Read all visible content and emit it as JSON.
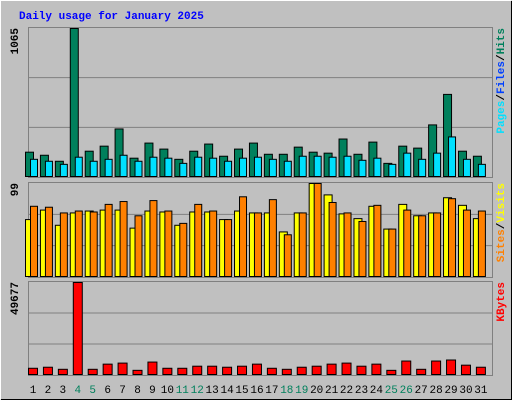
{
  "chart_data": [
    {
      "type": "bar",
      "title": "Daily usage for January 2025",
      "legend_separator": "/",
      "ylim": [
        0,
        1065
      ],
      "yticks": [
        1065
      ],
      "series": [
        {
          "name": "Hits",
          "color": "#00805c",
          "values": [
            181,
            159,
            116,
            1065,
            188,
            224,
            347,
            138,
            246,
            203,
            130,
            188,
            239,
            152,
            203,
            246,
            166,
            166,
            217,
            181,
            174,
            275,
            166,
            253,
            101,
            224,
            210,
            376,
            594,
            188,
            152
          ]
        },
        {
          "name": "Files",
          "color": "#0040ff",
          "values": [
            null,
            null,
            null,
            null,
            null,
            null,
            null,
            null,
            null,
            null,
            null,
            null,
            null,
            null,
            null,
            null,
            null,
            null,
            null,
            null,
            null,
            null,
            null,
            null,
            null,
            null,
            null,
            null,
            null,
            null,
            null
          ]
        },
        {
          "name": "Pages",
          "color": "#00e0ff",
          "values": [
            130,
            116,
            94,
            145,
            116,
            130,
            159,
            116,
            145,
            138,
            101,
            145,
            138,
            116,
            138,
            145,
            130,
            116,
            152,
            152,
            145,
            152,
            123,
            138,
            94,
            174,
            130,
            174,
            290,
            130,
            94
          ]
        }
      ]
    },
    {
      "type": "bar",
      "legend_separator": "/",
      "ylim": [
        0,
        99
      ],
      "yticks": [
        99
      ],
      "series": [
        {
          "name": "Visits",
          "color": "#ffff00",
          "values": [
            61,
            71,
            55,
            68,
            70,
            71,
            71,
            52,
            70,
            69,
            55,
            69,
            69,
            61,
            70,
            68,
            68,
            48,
            68,
            99,
            87,
            67,
            62,
            75,
            51,
            77,
            65,
            68,
            84,
            76,
            62
          ]
        },
        {
          "name": "Sites",
          "color": "#ff8000",
          "values": [
            75,
            74,
            68,
            70,
            69,
            77,
            80,
            65,
            81,
            70,
            57,
            77,
            70,
            61,
            85,
            68,
            82,
            45,
            68,
            99,
            79,
            68,
            59,
            76,
            51,
            71,
            65,
            68,
            83,
            71,
            70
          ]
        }
      ]
    },
    {
      "type": "bar",
      "ylim": [
        0,
        49677
      ],
      "yticks": [
        49677
      ],
      "categories": [
        "1",
        "2",
        "3",
        "4",
        "5",
        "6",
        "7",
        "8",
        "9",
        "10",
        "11",
        "12",
        "13",
        "14",
        "15",
        "16",
        "17",
        "18",
        "19",
        "20",
        "21",
        "22",
        "23",
        "24",
        "25",
        "26",
        "27",
        "28",
        "29",
        "30",
        "31"
      ],
      "category_colors": [
        "#000000",
        "#000000",
        "#000000",
        "#00805c",
        "#00805c",
        "#000000",
        "#000000",
        "#000000",
        "#000000",
        "#000000",
        "#00805c",
        "#00805c",
        "#000000",
        "#000000",
        "#000000",
        "#000000",
        "#000000",
        "#00805c",
        "#00805c",
        "#000000",
        "#000000",
        "#000000",
        "#000000",
        "#000000",
        "#00805c",
        "#00805c",
        "#000000",
        "#000000",
        "#000000",
        "#000000",
        "#000000"
      ],
      "series": [
        {
          "name": "KBytes",
          "color": "#ff0000",
          "values": [
            3860,
            4416,
            3312,
            49677,
            3312,
            6070,
            6624,
            2760,
            7176,
            3860,
            3860,
            4968,
            4968,
            4416,
            4968,
            6070,
            3860,
            3312,
            4416,
            4968,
            6070,
            6624,
            4968,
            6070,
            2760,
            7728,
            3312,
            7728,
            8280,
            5520,
            4416
          ]
        }
      ]
    }
  ]
}
